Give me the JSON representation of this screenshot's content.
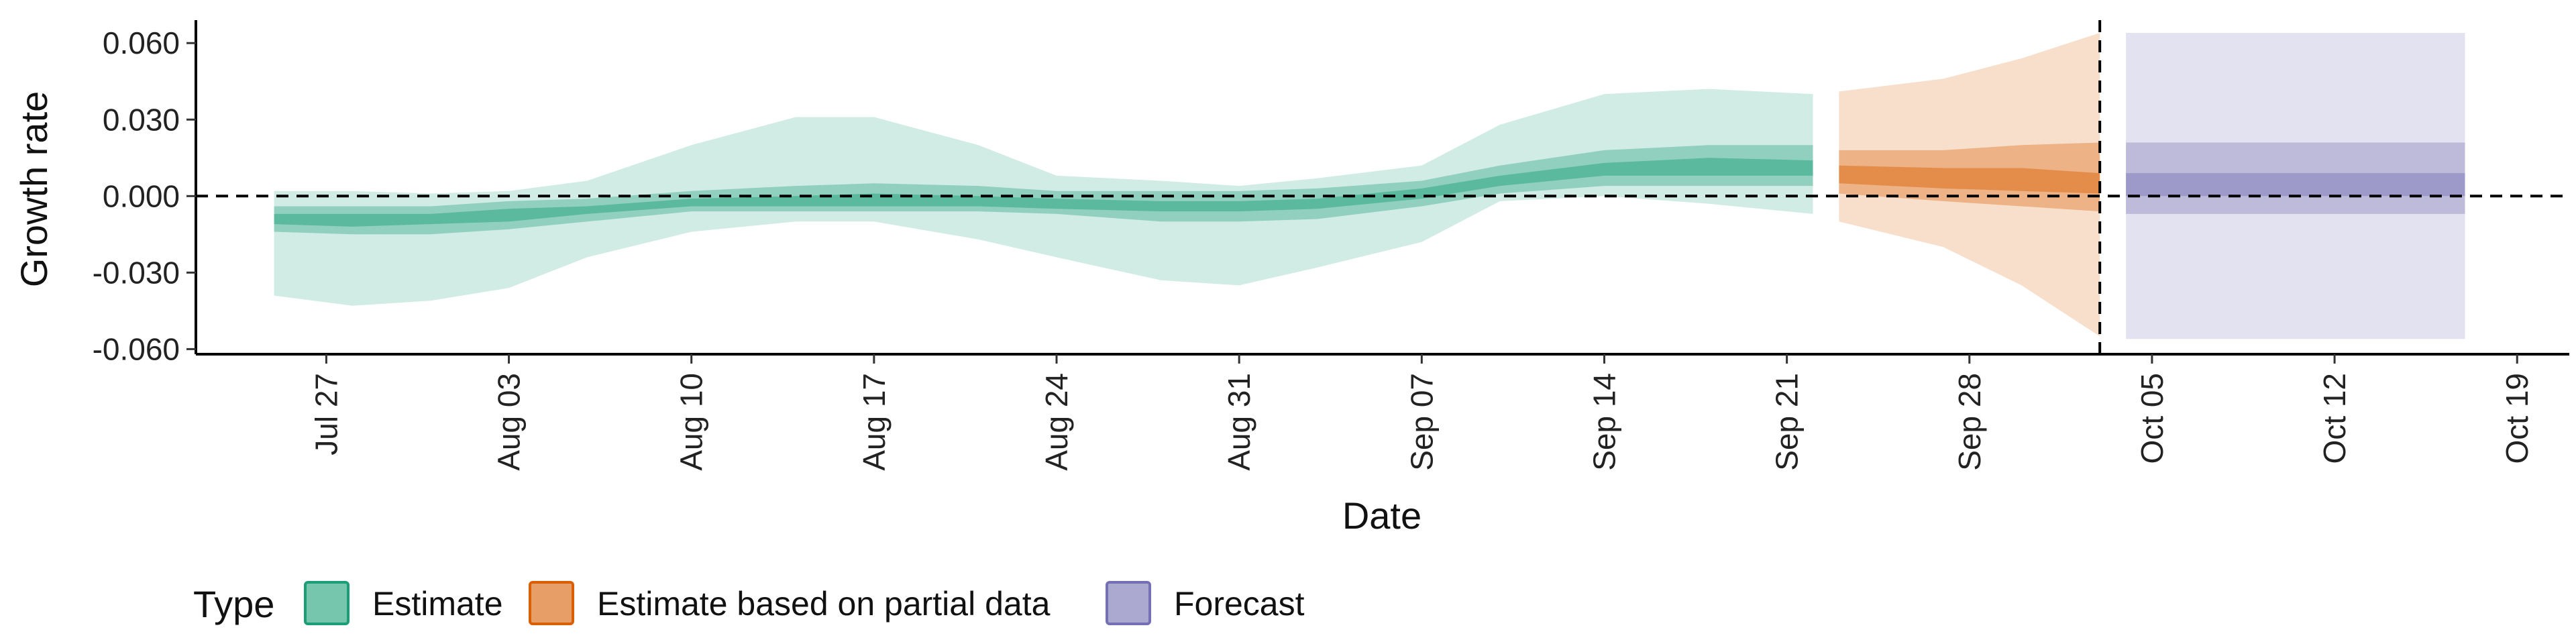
{
  "chart_data": {
    "type": "area",
    "xlabel": "Date",
    "ylabel": "Growth rate",
    "x_type": "date",
    "xlim": [
      "2020-07-22",
      "2020-10-21"
    ],
    "ylim": [
      -0.062,
      0.069
    ],
    "x_ticks": [
      {
        "date": "2020-07-27",
        "label": "Jul 27"
      },
      {
        "date": "2020-08-03",
        "label": "Aug 03"
      },
      {
        "date": "2020-08-10",
        "label": "Aug 10"
      },
      {
        "date": "2020-08-17",
        "label": "Aug 17"
      },
      {
        "date": "2020-08-24",
        "label": "Aug 24"
      },
      {
        "date": "2020-08-31",
        "label": "Aug 31"
      },
      {
        "date": "2020-09-07",
        "label": "Sep 07"
      },
      {
        "date": "2020-09-14",
        "label": "Sep 14"
      },
      {
        "date": "2020-09-21",
        "label": "Sep 21"
      },
      {
        "date": "2020-09-28",
        "label": "Sep 28"
      },
      {
        "date": "2020-10-05",
        "label": "Oct 05"
      },
      {
        "date": "2020-10-12",
        "label": "Oct 12"
      },
      {
        "date": "2020-10-19",
        "label": "Oct 19"
      }
    ],
    "y_ticks": [
      {
        "value": 0.06,
        "label": "0.060"
      },
      {
        "value": 0.03,
        "label": "0.030"
      },
      {
        "value": 0.0,
        "label": "0.000"
      },
      {
        "value": -0.03,
        "label": "-0.030"
      },
      {
        "value": -0.06,
        "label": "-0.060"
      }
    ],
    "reference_lines": {
      "horizontal_y": 0.0,
      "vertical_date": "2020-10-03",
      "style": "dashed"
    },
    "legend": {
      "title": "Type",
      "position": "bottom",
      "entries": [
        {
          "label": "Estimate",
          "color": "#1b9e77"
        },
        {
          "label": "Estimate based on partial data",
          "color": "#d95f02"
        },
        {
          "label": "Forecast",
          "color": "#7570b3"
        }
      ]
    },
    "series": [
      {
        "name": "Estimate",
        "color": "#1b9e77",
        "points": [
          {
            "date": "2020-07-25",
            "ci90": [
              -0.039,
              0.002
            ],
            "ci50": [
              -0.014,
              -0.004
            ],
            "ci20": [
              -0.011,
              -0.007
            ]
          },
          {
            "date": "2020-07-28",
            "ci90": [
              -0.043,
              0.002
            ],
            "ci50": [
              -0.015,
              -0.004
            ],
            "ci20": [
              -0.012,
              -0.007
            ]
          },
          {
            "date": "2020-07-31",
            "ci90": [
              -0.041,
              0.001
            ],
            "ci50": [
              -0.015,
              -0.004
            ],
            "ci20": [
              -0.011,
              -0.007
            ]
          },
          {
            "date": "2020-08-03",
            "ci90": [
              -0.036,
              0.002
            ],
            "ci50": [
              -0.013,
              -0.002
            ],
            "ci20": [
              -0.01,
              -0.005
            ]
          },
          {
            "date": "2020-08-06",
            "ci90": [
              -0.024,
              0.006
            ],
            "ci50": [
              -0.01,
              -0.001
            ],
            "ci20": [
              -0.007,
              -0.004
            ]
          },
          {
            "date": "2020-08-10",
            "ci90": [
              -0.014,
              0.02
            ],
            "ci50": [
              -0.006,
              0.002
            ],
            "ci20": [
              -0.004,
              -0.001
            ]
          },
          {
            "date": "2020-08-14",
            "ci90": [
              -0.01,
              0.031
            ],
            "ci50": [
              -0.006,
              0.004
            ],
            "ci20": [
              -0.004,
              0.0
            ]
          },
          {
            "date": "2020-08-17",
            "ci90": [
              -0.01,
              0.031
            ],
            "ci50": [
              -0.006,
              0.005
            ],
            "ci20": [
              -0.004,
              0.001
            ]
          },
          {
            "date": "2020-08-21",
            "ci90": [
              -0.017,
              0.02
            ],
            "ci50": [
              -0.006,
              0.004
            ],
            "ci20": [
              -0.004,
              0.0
            ]
          },
          {
            "date": "2020-08-24",
            "ci90": [
              -0.024,
              0.008
            ],
            "ci50": [
              -0.007,
              0.002
            ],
            "ci20": [
              -0.005,
              -0.001
            ]
          },
          {
            "date": "2020-08-28",
            "ci90": [
              -0.033,
              0.006
            ],
            "ci50": [
              -0.01,
              0.002
            ],
            "ci20": [
              -0.006,
              -0.002
            ]
          },
          {
            "date": "2020-08-31",
            "ci90": [
              -0.035,
              0.004
            ],
            "ci50": [
              -0.01,
              0.002
            ],
            "ci20": [
              -0.006,
              -0.002
            ]
          },
          {
            "date": "2020-09-03",
            "ci90": [
              -0.028,
              0.007
            ],
            "ci50": [
              -0.009,
              0.003
            ],
            "ci20": [
              -0.005,
              -0.001
            ]
          },
          {
            "date": "2020-09-07",
            "ci90": [
              -0.018,
              0.012
            ],
            "ci50": [
              -0.004,
              0.006
            ],
            "ci20": [
              -0.001,
              0.003
            ]
          },
          {
            "date": "2020-09-10",
            "ci90": [
              -0.002,
              0.028
            ],
            "ci50": [
              0.001,
              0.012
            ],
            "ci20": [
              0.004,
              0.008
            ]
          },
          {
            "date": "2020-09-14",
            "ci90": [
              0.0,
              0.04
            ],
            "ci50": [
              0.004,
              0.018
            ],
            "ci20": [
              0.008,
              0.013
            ]
          },
          {
            "date": "2020-09-18",
            "ci90": [
              -0.003,
              0.042
            ],
            "ci50": [
              0.004,
              0.02
            ],
            "ci20": [
              0.008,
              0.015
            ]
          },
          {
            "date": "2020-09-22",
            "ci90": [
              -0.007,
              0.04
            ],
            "ci50": [
              0.004,
              0.02
            ],
            "ci20": [
              0.008,
              0.014
            ]
          }
        ]
      },
      {
        "name": "Estimate based on partial data",
        "color": "#d95f02",
        "points": [
          {
            "date": "2020-09-23",
            "ci90": [
              -0.01,
              0.041
            ],
            "ci50": [
              0.001,
              0.018
            ],
            "ci20": [
              0.005,
              0.012
            ]
          },
          {
            "date": "2020-09-27",
            "ci90": [
              -0.02,
              0.046
            ],
            "ci50": [
              -0.002,
              0.018
            ],
            "ci20": [
              0.003,
              0.011
            ]
          },
          {
            "date": "2020-09-30",
            "ci90": [
              -0.035,
              0.054
            ],
            "ci50": [
              -0.004,
              0.02
            ],
            "ci20": [
              0.002,
              0.011
            ]
          },
          {
            "date": "2020-10-03",
            "ci90": [
              -0.055,
              0.064
            ],
            "ci50": [
              -0.006,
              0.021
            ],
            "ci20": [
              0.001,
              0.009
            ]
          }
        ]
      },
      {
        "name": "Forecast",
        "color": "#7570b3",
        "points": [
          {
            "date": "2020-10-04",
            "ci90": [
              -0.056,
              0.064
            ],
            "ci50": [
              -0.007,
              0.021
            ],
            "ci20": [
              0.0,
              0.009
            ]
          },
          {
            "date": "2020-10-17",
            "ci90": [
              -0.056,
              0.064
            ],
            "ci50": [
              -0.007,
              0.021
            ],
            "ci20": [
              0.0,
              0.009
            ]
          }
        ]
      }
    ]
  }
}
